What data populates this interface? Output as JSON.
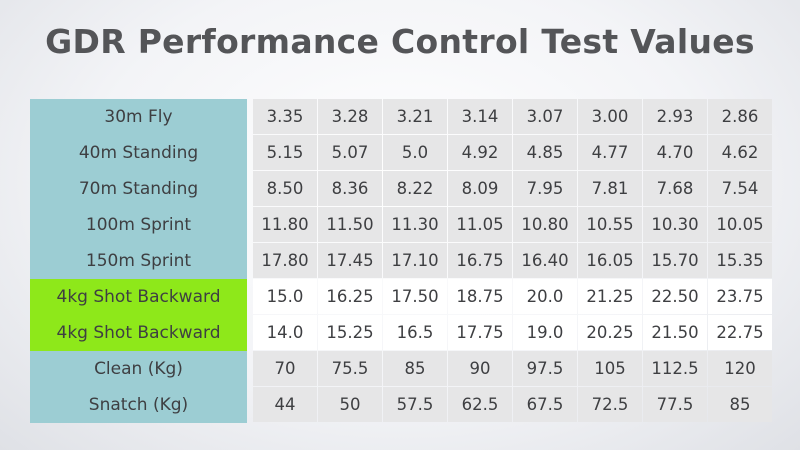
{
  "title": "GDR Performance Control Test Values",
  "colors": {
    "label_bg": "#9ccdd3",
    "highlight_bg": "#8ee81a",
    "cell_bg": "#e6e6e7",
    "highlight_cell_bg": "#ffffff",
    "text": "#3e3f42",
    "title_text": "#545558"
  },
  "rows": [
    {
      "label": "30m Fly",
      "highlight": false,
      "values": [
        "3.35",
        "3.28",
        "3.21",
        "3.14",
        "3.07",
        "3.00",
        "2.93",
        "2.86"
      ]
    },
    {
      "label": "40m Standing",
      "highlight": false,
      "values": [
        "5.15",
        "5.07",
        "5.0",
        "4.92",
        "4.85",
        "4.77",
        "4.70",
        "4.62"
      ]
    },
    {
      "label": "70m Standing",
      "highlight": false,
      "values": [
        "8.50",
        "8.36",
        "8.22",
        "8.09",
        "7.95",
        "7.81",
        "7.68",
        "7.54"
      ]
    },
    {
      "label": "100m Sprint",
      "highlight": false,
      "values": [
        "11.80",
        "11.50",
        "11.30",
        "11.05",
        "10.80",
        "10.55",
        "10.30",
        "10.05"
      ]
    },
    {
      "label": "150m Sprint",
      "highlight": false,
      "values": [
        "17.80",
        "17.45",
        "17.10",
        "16.75",
        "16.40",
        "16.05",
        "15.70",
        "15.35"
      ]
    },
    {
      "label": "4kg Shot Backward",
      "highlight": true,
      "values": [
        "15.0",
        "16.25",
        "17.50",
        "18.75",
        "20.0",
        "21.25",
        "22.50",
        "23.75"
      ]
    },
    {
      "label": "4kg Shot Backward",
      "highlight": true,
      "values": [
        "14.0",
        "15.25",
        "16.5",
        "17.75",
        "19.0",
        "20.25",
        "21.50",
        "22.75"
      ]
    },
    {
      "label": "Clean (Kg)",
      "highlight": false,
      "values": [
        "70",
        "75.5",
        "85",
        "90",
        "97.5",
        "105",
        "112.5",
        "120"
      ]
    },
    {
      "label": "Snatch (Kg)",
      "highlight": false,
      "values": [
        "44",
        "50",
        "57.5",
        "62.5",
        "67.5",
        "72.5",
        "77.5",
        "85"
      ]
    }
  ]
}
